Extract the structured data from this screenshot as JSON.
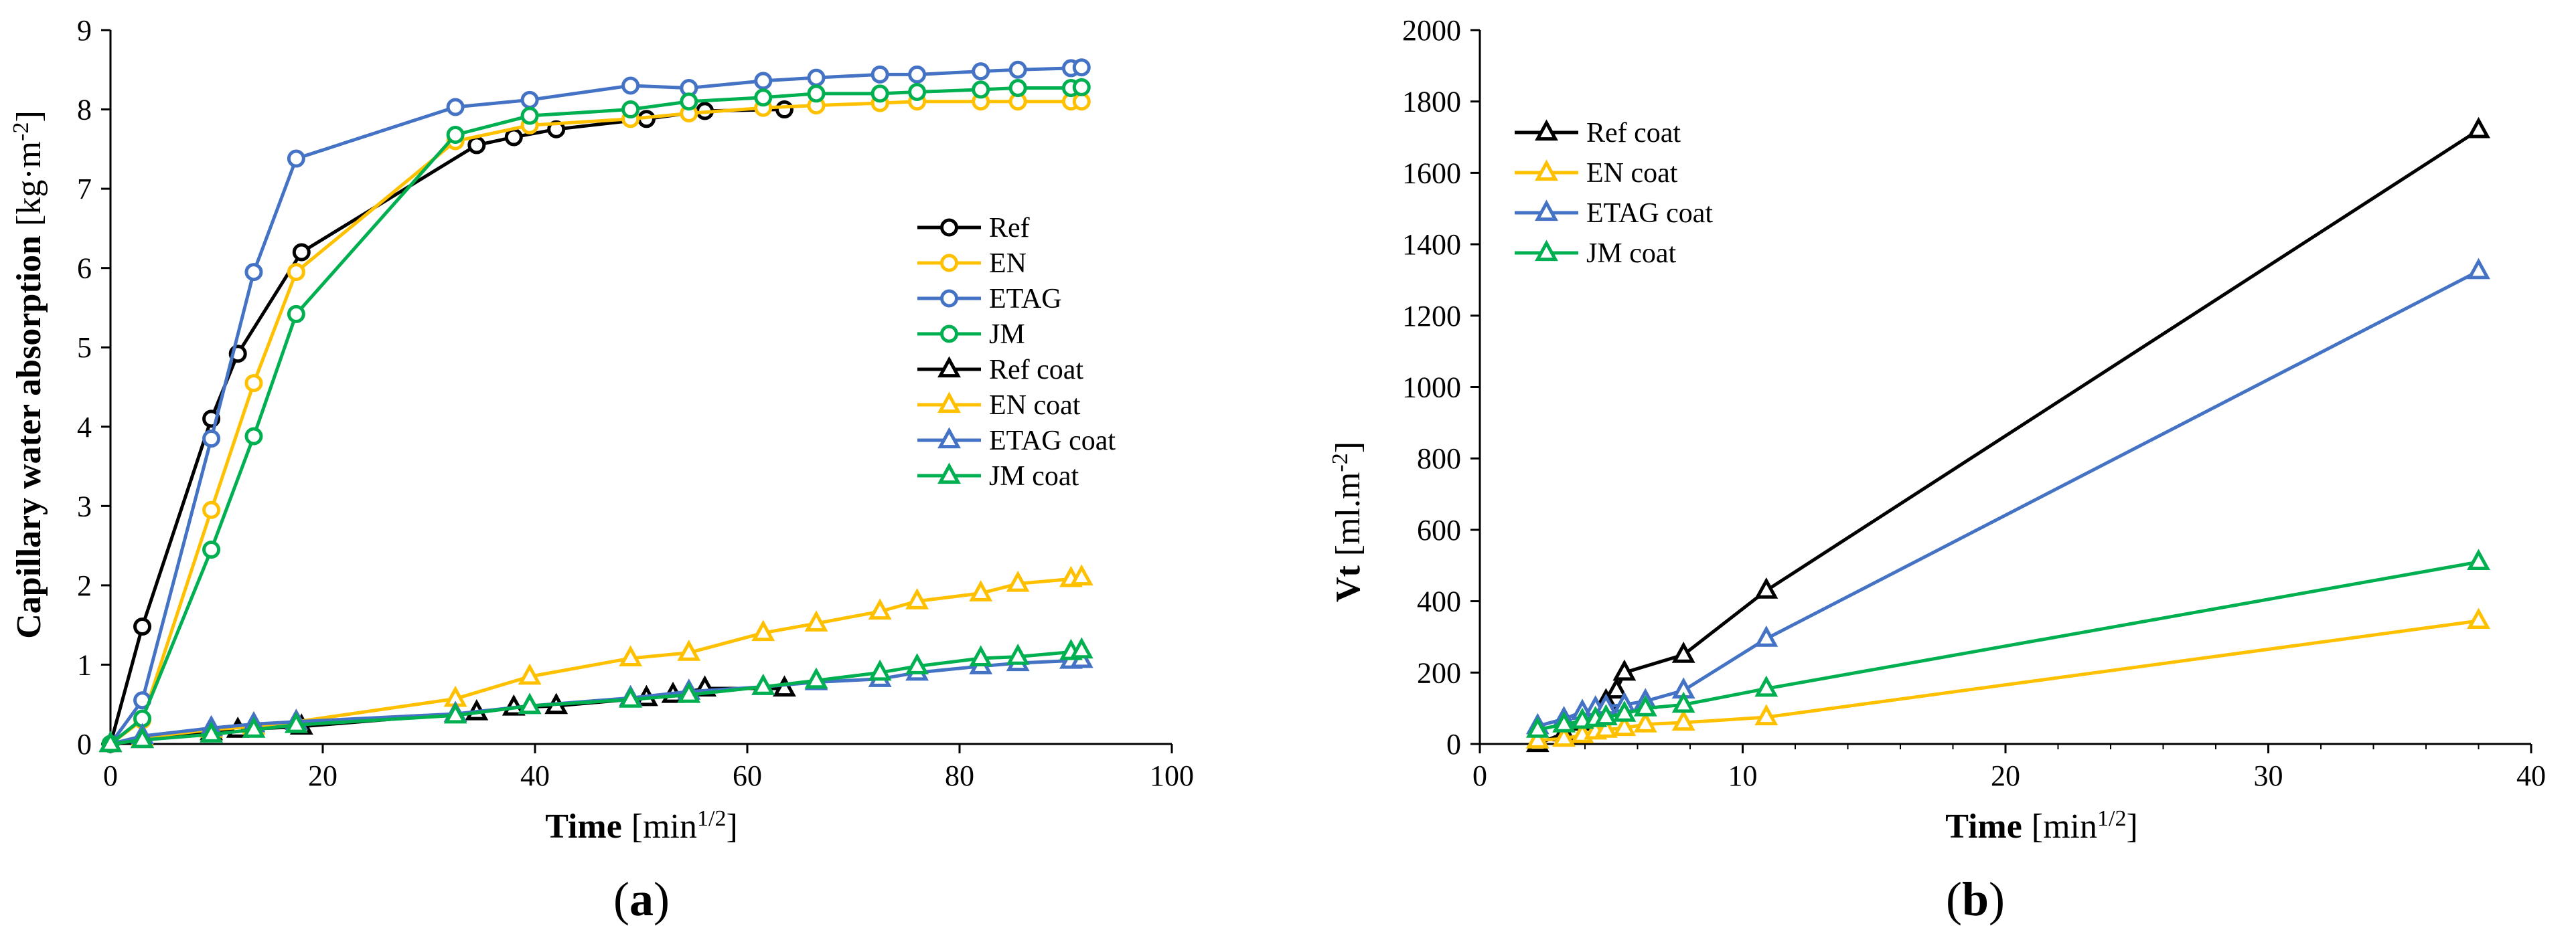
{
  "chart_data": [
    {
      "type": "line",
      "panel_label": "(a)",
      "panel_letter": "a",
      "ylabel_bold": "Capillary water absorption",
      "ylabel_unit": "[kg·m",
      "ylabel_sup": "-2",
      "ylabel_close": "]",
      "xlabel_bold": "Time",
      "xlabel_unit": "[min",
      "xlabel_sup": "1/2",
      "xlabel_close": "]",
      "xlim": [
        0,
        100
      ],
      "ylim": [
        0,
        9
      ],
      "xticks": [
        0,
        20,
        40,
        60,
        80,
        100
      ],
      "yticks": [
        0,
        1,
        2,
        3,
        4,
        5,
        6,
        7,
        8,
        9
      ],
      "legend_position": "center-right",
      "series": [
        {
          "name": "Ref",
          "color": "#000000",
          "marker": "circle",
          "x": [
            0,
            3,
            9.5,
            12,
            18,
            34.5,
            38,
            42,
            50.5,
            56,
            63.5
          ],
          "y": [
            0,
            1.48,
            4.1,
            4.92,
            6.2,
            7.55,
            7.65,
            7.75,
            7.88,
            7.98,
            8.0
          ]
        },
        {
          "name": "EN",
          "color": "#FFC000",
          "marker": "circle",
          "x": [
            0,
            3,
            9.5,
            13.5,
            17.5,
            32.5,
            39.5,
            49,
            54.5,
            61.5,
            66.5,
            72.5,
            76,
            82,
            85.5,
            90.5,
            91.5
          ],
          "y": [
            0,
            0.3,
            2.95,
            4.55,
            5.95,
            7.6,
            7.8,
            7.88,
            7.95,
            8.02,
            8.05,
            8.08,
            8.1,
            8.1,
            8.1,
            8.1,
            8.1
          ]
        },
        {
          "name": "ETAG",
          "color": "#4472C4",
          "marker": "circle",
          "x": [
            0,
            3,
            9.5,
            13.5,
            17.5,
            32.5,
            39.5,
            49,
            54.5,
            61.5,
            66.5,
            72.5,
            76,
            82,
            85.5,
            90.5,
            91.5
          ],
          "y": [
            0,
            0.55,
            3.85,
            5.95,
            7.38,
            8.03,
            8.12,
            8.3,
            8.27,
            8.36,
            8.4,
            8.44,
            8.44,
            8.48,
            8.5,
            8.52,
            8.53
          ]
        },
        {
          "name": "JM",
          "color": "#00B050",
          "marker": "circle",
          "x": [
            0,
            3,
            9.5,
            13.5,
            17.5,
            32.5,
            39.5,
            49,
            54.5,
            61.5,
            66.5,
            72.5,
            76,
            82,
            85.5,
            90.5,
            91.5
          ],
          "y": [
            0,
            0.32,
            2.45,
            3.88,
            5.42,
            7.68,
            7.92,
            8.0,
            8.1,
            8.15,
            8.2,
            8.2,
            8.22,
            8.25,
            8.27,
            8.27,
            8.28
          ]
        },
        {
          "name": "Ref coat",
          "color": "#000000",
          "marker": "triangle",
          "x": [
            0,
            3,
            9.5,
            12,
            18,
            34.5,
            38,
            42,
            50.5,
            53,
            56,
            63.5
          ],
          "y": [
            0,
            0.05,
            0.15,
            0.18,
            0.22,
            0.4,
            0.46,
            0.48,
            0.58,
            0.62,
            0.7,
            0.7
          ]
        },
        {
          "name": "EN coat",
          "color": "#FFC000",
          "marker": "triangle",
          "x": [
            0,
            3,
            9.5,
            13.5,
            17.5,
            32.5,
            39.5,
            49,
            54.5,
            61.5,
            66.5,
            72.5,
            76,
            82,
            85.5,
            90.5,
            91.5
          ],
          "y": [
            0,
            0.08,
            0.18,
            0.22,
            0.28,
            0.57,
            0.85,
            1.08,
            1.15,
            1.4,
            1.52,
            1.67,
            1.8,
            1.9,
            2.02,
            2.08,
            2.1
          ]
        },
        {
          "name": "ETAG coat",
          "color": "#4472C4",
          "marker": "triangle",
          "x": [
            0,
            3,
            9.5,
            13.5,
            17.5,
            32.5,
            39.5,
            49,
            54.5,
            61.5,
            66.5,
            72.5,
            76,
            82,
            85.5,
            90.5,
            91.5
          ],
          "y": [
            0,
            0.1,
            0.2,
            0.25,
            0.28,
            0.38,
            0.48,
            0.58,
            0.66,
            0.72,
            0.78,
            0.82,
            0.9,
            0.98,
            1.02,
            1.05,
            1.06
          ]
        },
        {
          "name": "JM coat",
          "color": "#00B050",
          "marker": "triangle",
          "x": [
            0,
            3,
            9.5,
            13.5,
            17.5,
            32.5,
            39.5,
            49,
            54.5,
            61.5,
            66.5,
            72.5,
            76,
            82,
            85.5,
            90.5,
            91.5
          ],
          "y": [
            0,
            0.05,
            0.12,
            0.18,
            0.24,
            0.36,
            0.48,
            0.56,
            0.62,
            0.72,
            0.8,
            0.9,
            0.98,
            1.08,
            1.1,
            1.16,
            1.18
          ]
        }
      ]
    },
    {
      "type": "line",
      "panel_label": "(b)",
      "panel_letter": "b",
      "ylabel_bold": "Vt",
      "ylabel_unit": "[ml.m",
      "ylabel_sup": "-2",
      "ylabel_close": "]",
      "xlabel_bold": "Time",
      "xlabel_unit": "[min",
      "xlabel_sup": "1/2",
      "xlabel_close": "]",
      "xlim": [
        0,
        40
      ],
      "ylim": [
        0,
        2000
      ],
      "xticks": [
        0,
        10,
        20,
        30,
        40
      ],
      "yticks": [
        0,
        200,
        400,
        600,
        800,
        1000,
        1200,
        1400,
        1600,
        1800,
        2000
      ],
      "legend_position": "top-left",
      "series": [
        {
          "name": "Ref coat",
          "color": "#000000",
          "marker": "triangle",
          "x": [
            2.2,
            3.2,
            3.9,
            4.4,
            4.8,
            5.2,
            5.5,
            7.75,
            10.9,
            38
          ],
          "y": [
            0,
            30,
            60,
            80,
            120,
            150,
            200,
            250,
            430,
            1720
          ]
        },
        {
          "name": "EN coat",
          "color": "#FFC000",
          "marker": "triangle",
          "x": [
            2.2,
            3.2,
            3.9,
            4.4,
            4.8,
            5.5,
            6.3,
            7.75,
            10.9,
            38
          ],
          "y": [
            10,
            15,
            25,
            35,
            40,
            45,
            55,
            60,
            75,
            345
          ]
        },
        {
          "name": "ETAG coat",
          "color": "#4472C4",
          "marker": "triangle",
          "x": [
            2.2,
            3.2,
            3.9,
            4.4,
            4.8,
            5.5,
            6.3,
            7.75,
            10.9,
            38
          ],
          "y": [
            50,
            70,
            90,
            100,
            105,
            110,
            120,
            150,
            295,
            1325
          ]
        },
        {
          "name": "JM coat",
          "color": "#00B050",
          "marker": "triangle",
          "x": [
            2.2,
            3.2,
            3.9,
            4.4,
            4.8,
            5.5,
            6.3,
            7.75,
            10.9,
            38
          ],
          "y": [
            40,
            55,
            65,
            70,
            75,
            85,
            100,
            110,
            155,
            510
          ]
        }
      ]
    }
  ]
}
